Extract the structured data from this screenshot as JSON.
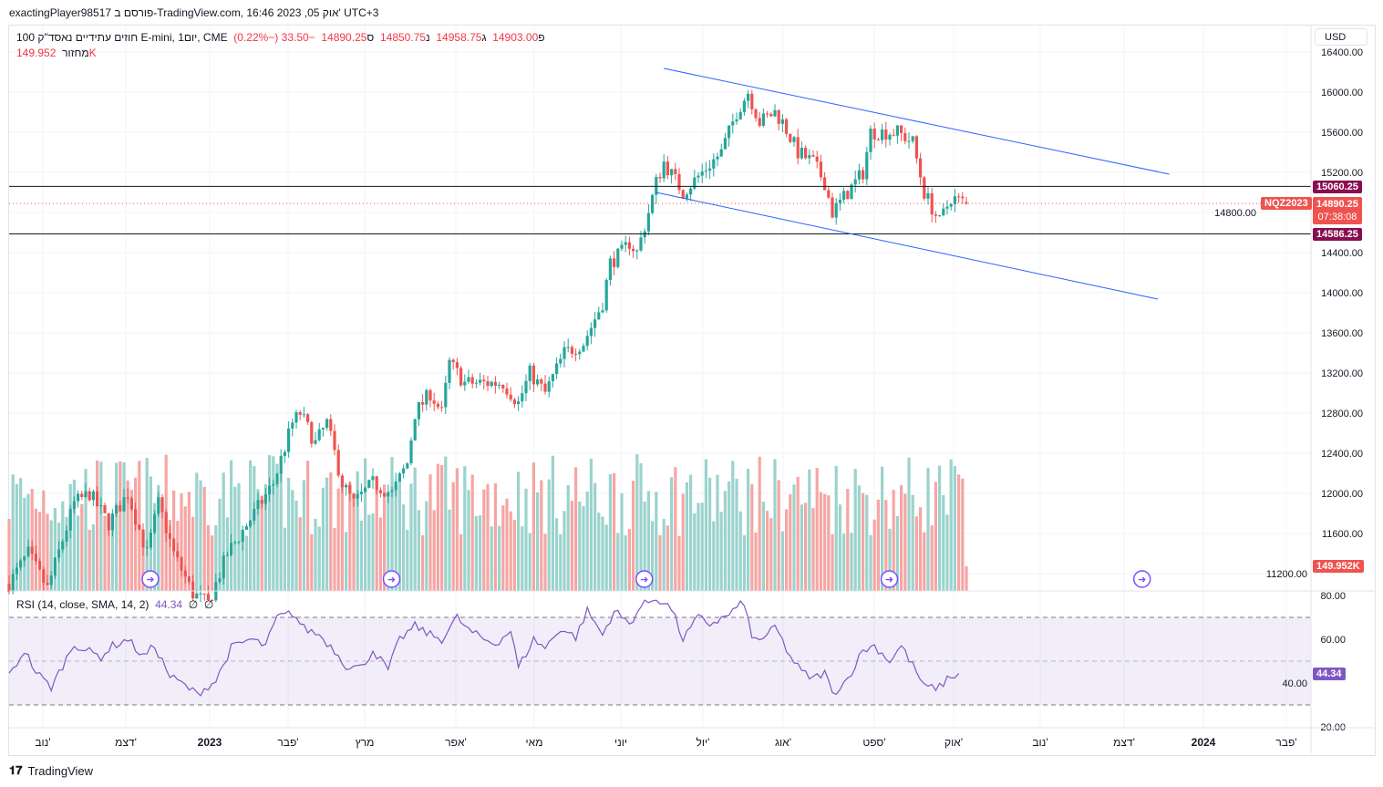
{
  "header": {
    "title": "exactingPlayer98517 פורסם ב-TradingView.com, 16:46 2023 ,05 אוק' UTC+3"
  },
  "legend": {
    "symbol": "100 חוזים עתידיים נאסד\"ק E-mini, 1יום, CME",
    "o_label": "פ",
    "open": "14903.00",
    "h_label": "ג",
    "high": "14958.75",
    "l_label": "נ",
    "low": "14850.75",
    "c_label": "ס",
    "close": "14890.25",
    "change": "−33.50 (−0.22%)",
    "volume_label": "מחזור",
    "volume": "149.952K"
  },
  "rsi_legend": {
    "label": "RSI (14, close, SMA, 14, 2)",
    "value": "44.34",
    "na1": "∅",
    "na2": "∅"
  },
  "currency": "USD",
  "tags": {
    "upper_level": "15060.25",
    "lower_level": "14586.25",
    "ticker": "NQZ2023",
    "price": "14890.25",
    "countdown": "07:38:08",
    "volume": "149.952K",
    "rsi": "44.34"
  },
  "footer": {
    "brand": "TradingView"
  },
  "colors": {
    "up": "#26a69a",
    "down": "#ef5350",
    "level": "#880e4f",
    "trend": "#2962ff",
    "rsi": "#7e57c2"
  },
  "chart_data": {
    "type": "candlestick",
    "price_axis": {
      "ticks": [
        "16400.00",
        "16000.00",
        "15600.00",
        "15200.00",
        "14800.00",
        "14400.00",
        "14000.00",
        "13600.00",
        "13200.00",
        "12800.00",
        "12400.00",
        "12000.00",
        "11600.00",
        "11200.00"
      ]
    },
    "time_axis": {
      "ticks": [
        "נוב'",
        "דצמ'",
        "2023",
        "פבר'",
        "מרץ",
        "אפר'",
        "מאי",
        "יוני",
        "יול'",
        "אוג'",
        "ספט'",
        "אוק'",
        "נוב'",
        "דצמ'",
        "2024",
        "פבר'"
      ]
    },
    "close_knots": [
      [
        0,
        11100
      ],
      [
        5,
        11400
      ],
      [
        10,
        11050
      ],
      [
        17,
        11900
      ],
      [
        21,
        12000
      ],
      [
        26,
        11700
      ],
      [
        31,
        12000
      ],
      [
        36,
        11400
      ],
      [
        39,
        11900
      ],
      [
        43,
        11400
      ],
      [
        48,
        11000
      ],
      [
        52,
        10900
      ],
      [
        57,
        11400
      ],
      [
        64,
        11800
      ],
      [
        69,
        12100
      ],
      [
        74,
        12700
      ],
      [
        76,
        12800
      ],
      [
        80,
        12500
      ],
      [
        83,
        12700
      ],
      [
        87,
        12100
      ],
      [
        90,
        11900
      ],
      [
        95,
        12100
      ],
      [
        100,
        12000
      ],
      [
        104,
        12300
      ],
      [
        106,
        12800
      ],
      [
        110,
        13000
      ],
      [
        113,
        12800
      ],
      [
        115,
        13300
      ],
      [
        119,
        13100
      ],
      [
        124,
        13100
      ],
      [
        129,
        13100
      ],
      [
        133,
        12900
      ],
      [
        136,
        13200
      ],
      [
        140,
        13000
      ],
      [
        145,
        13400
      ],
      [
        150,
        13500
      ],
      [
        155,
        13900
      ],
      [
        157,
        14300
      ],
      [
        160,
        14400
      ],
      [
        162,
        14500
      ],
      [
        164,
        14400
      ],
      [
        167,
        14800
      ],
      [
        169,
        15100
      ],
      [
        171,
        15300
      ],
      [
        176,
        15000
      ],
      [
        181,
        15200
      ],
      [
        186,
        15400
      ],
      [
        188,
        15600
      ],
      [
        190,
        15800
      ],
      [
        193,
        16000
      ],
      [
        196,
        15700
      ],
      [
        200,
        15800
      ],
      [
        202,
        15700
      ],
      [
        206,
        15400
      ],
      [
        210,
        15300
      ],
      [
        213,
        15100
      ],
      [
        215,
        14800
      ],
      [
        219,
        15000
      ],
      [
        223,
        15200
      ],
      [
        225,
        15600
      ],
      [
        229,
        15600
      ],
      [
        232,
        15600
      ],
      [
        236,
        15500
      ],
      [
        239,
        15000
      ],
      [
        243,
        14700
      ],
      [
        246,
        14950
      ],
      [
        250,
        14890.25
      ]
    ],
    "levels": [
      15060.25,
      14586.25
    ],
    "trendlines": [
      {
        "from": [
          171,
          16236
        ],
        "to": [
          303,
          15182
        ]
      },
      {
        "from": [
          169,
          15000
        ],
        "to": [
          300,
          13936
        ]
      }
    ],
    "rsi": {
      "levels": [
        70,
        50,
        30
      ],
      "ticks": [
        "80.00",
        "60.00",
        "40.00",
        "20.00"
      ],
      "knots": [
        [
          0,
          43
        ],
        [
          4,
          55
        ],
        [
          7,
          45
        ],
        [
          11,
          38
        ],
        [
          14,
          48
        ],
        [
          17,
          58
        ],
        [
          20,
          55
        ],
        [
          24,
          52
        ],
        [
          27,
          57
        ],
        [
          31,
          60
        ],
        [
          35,
          52
        ],
        [
          38,
          57
        ],
        [
          42,
          43
        ],
        [
          45,
          40
        ],
        [
          49,
          35
        ],
        [
          54,
          41
        ],
        [
          58,
          56
        ],
        [
          63,
          60
        ],
        [
          67,
          57
        ],
        [
          70,
          70
        ],
        [
          74,
          72
        ],
        [
          77,
          65
        ],
        [
          81,
          62
        ],
        [
          85,
          55
        ],
        [
          88,
          48
        ],
        [
          92,
          47
        ],
        [
          95,
          55
        ],
        [
          99,
          46
        ],
        [
          102,
          60
        ],
        [
          106,
          66
        ],
        [
          110,
          62
        ],
        [
          113,
          60
        ],
        [
          117,
          70
        ],
        [
          120,
          64
        ],
        [
          124,
          60
        ],
        [
          127,
          58
        ],
        [
          131,
          64
        ],
        [
          133,
          47
        ],
        [
          137,
          60
        ],
        [
          140,
          56
        ],
        [
          144,
          65
        ],
        [
          148,
          61
        ],
        [
          151,
          73
        ],
        [
          155,
          62
        ],
        [
          158,
          73
        ],
        [
          162,
          67
        ],
        [
          165,
          75
        ],
        [
          169,
          79
        ],
        [
          173,
          74
        ],
        [
          176,
          60
        ],
        [
          180,
          70
        ],
        [
          183,
          67
        ],
        [
          187,
          70
        ],
        [
          192,
          77
        ],
        [
          194,
          60
        ],
        [
          198,
          61
        ],
        [
          200,
          66
        ],
        [
          204,
          52
        ],
        [
          207,
          45
        ],
        [
          210,
          42
        ],
        [
          213,
          45
        ],
        [
          215,
          35
        ],
        [
          219,
          42
        ],
        [
          223,
          55
        ],
        [
          226,
          57
        ],
        [
          230,
          50
        ],
        [
          233,
          57
        ],
        [
          237,
          45
        ],
        [
          239,
          38
        ],
        [
          243,
          38
        ],
        [
          245,
          42
        ],
        [
          248,
          44.34
        ]
      ]
    },
    "events_days": [
      37,
      100,
      166,
      230,
      296
    ]
  }
}
